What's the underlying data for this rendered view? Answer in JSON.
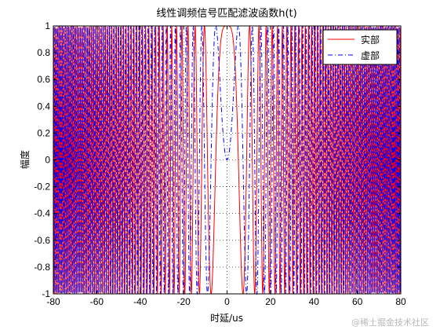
{
  "chart_data": {
    "type": "line",
    "title": "线性调频信号匹配滤波函数h(t)",
    "xlabel": "时延/us",
    "ylabel": "幅度",
    "xlim": [
      -80,
      80
    ],
    "ylim": [
      -1,
      1
    ],
    "xticks": [
      -80,
      -60,
      -40,
      -20,
      0,
      20,
      40,
      60,
      80
    ],
    "xtick_labels": [
      "-80",
      "-60",
      "-40",
      "-20",
      "0",
      "20",
      "40",
      "60",
      "80"
    ],
    "yticks": [
      -1,
      -0.8,
      -0.6,
      -0.4,
      -0.2,
      0,
      0.2,
      0.4,
      0.6,
      0.8,
      1
    ],
    "ytick_labels": [
      "-1",
      "-0.8",
      "-0.6",
      "-0.4",
      "-0.2",
      "0",
      "0.2",
      "0.4",
      "0.6",
      "0.8",
      "1"
    ],
    "grid": true,
    "legend_position": "top-right",
    "signal": {
      "form": "chirp",
      "chirp_rate_per_us2": 0.0185
    },
    "series": [
      {
        "name": "实部",
        "function": "cos",
        "color": "#ff0000",
        "style": "solid"
      },
      {
        "name": "虚部",
        "function": "sin",
        "color": "#0000ff",
        "style": "dash-dot"
      }
    ]
  },
  "watermark": "@稀土掘金技术社区"
}
